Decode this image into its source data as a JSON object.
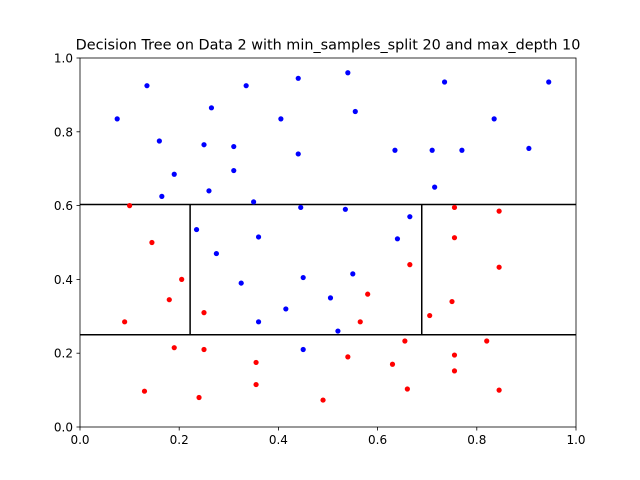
{
  "chart_data": {
    "type": "scatter",
    "title": "Decision Tree on Data 2 with min_samples_split 20 and max_depth 10",
    "xlabel": "",
    "ylabel": "",
    "xlim": [
      0,
      1
    ],
    "ylim": [
      0,
      1
    ],
    "grid": false,
    "xticks": [
      "0.0",
      "0.2",
      "0.4",
      "0.6",
      "0.8",
      "1.0"
    ],
    "yticks": [
      "0.0",
      "0.2",
      "0.4",
      "0.6",
      "0.8",
      "1.0"
    ],
    "colors": {
      "blue": "#0000ff",
      "red": "#ff0000",
      "boundary": "#000000"
    },
    "series": [
      {
        "color": "#0000ff",
        "points": [
          [
            0.075,
            0.835
          ],
          [
            0.135,
            0.925
          ],
          [
            0.16,
            0.775
          ],
          [
            0.19,
            0.685
          ],
          [
            0.165,
            0.625
          ],
          [
            0.265,
            0.865
          ],
          [
            0.25,
            0.765
          ],
          [
            0.26,
            0.64
          ],
          [
            0.31,
            0.76
          ],
          [
            0.31,
            0.695
          ],
          [
            0.335,
            0.925
          ],
          [
            0.405,
            0.835
          ],
          [
            0.44,
            0.945
          ],
          [
            0.44,
            0.74
          ],
          [
            0.54,
            0.96
          ],
          [
            0.555,
            0.855
          ],
          [
            0.635,
            0.75
          ],
          [
            0.71,
            0.75
          ],
          [
            0.715,
            0.65
          ],
          [
            0.735,
            0.935
          ],
          [
            0.77,
            0.75
          ],
          [
            0.835,
            0.835
          ],
          [
            0.905,
            0.755
          ],
          [
            0.945,
            0.935
          ],
          [
            0.35,
            0.61
          ],
          [
            0.235,
            0.535
          ],
          [
            0.275,
            0.47
          ],
          [
            0.36,
            0.515
          ],
          [
            0.445,
            0.595
          ],
          [
            0.535,
            0.59
          ],
          [
            0.64,
            0.51
          ],
          [
            0.665,
            0.57
          ],
          [
            0.325,
            0.39
          ],
          [
            0.45,
            0.405
          ],
          [
            0.415,
            0.32
          ],
          [
            0.55,
            0.415
          ],
          [
            0.505,
            0.35
          ],
          [
            0.36,
            0.285
          ],
          [
            0.52,
            0.26
          ],
          [
            0.45,
            0.21
          ]
        ]
      },
      {
        "color": "#ff0000",
        "points": [
          [
            0.1,
            0.6
          ],
          [
            0.145,
            0.5
          ],
          [
            0.205,
            0.4
          ],
          [
            0.18,
            0.345
          ],
          [
            0.09,
            0.285
          ],
          [
            0.25,
            0.31
          ],
          [
            0.19,
            0.215
          ],
          [
            0.25,
            0.21
          ],
          [
            0.13,
            0.097
          ],
          [
            0.24,
            0.08
          ],
          [
            0.355,
            0.175
          ],
          [
            0.355,
            0.115
          ],
          [
            0.49,
            0.073
          ],
          [
            0.54,
            0.19
          ],
          [
            0.565,
            0.285
          ],
          [
            0.58,
            0.36
          ],
          [
            0.63,
            0.17
          ],
          [
            0.655,
            0.233
          ],
          [
            0.665,
            0.44
          ],
          [
            0.66,
            0.103
          ],
          [
            0.705,
            0.302
          ],
          [
            0.755,
            0.595
          ],
          [
            0.755,
            0.513
          ],
          [
            0.75,
            0.34
          ],
          [
            0.755,
            0.195
          ],
          [
            0.755,
            0.152
          ],
          [
            0.82,
            0.233
          ],
          [
            0.845,
            0.585
          ],
          [
            0.845,
            0.433
          ],
          [
            0.845,
            0.1
          ]
        ]
      }
    ],
    "boundaries": [
      {
        "x1": 0,
        "y1": 0.603,
        "x2": 1,
        "y2": 0.603
      },
      {
        "x1": 0,
        "y1": 0.25,
        "x2": 1,
        "y2": 0.25
      },
      {
        "x1": 0.222,
        "y1": 0.25,
        "x2": 0.222,
        "y2": 0.603
      },
      {
        "x1": 0.689,
        "y1": 0.25,
        "x2": 0.689,
        "y2": 0.603
      }
    ]
  }
}
